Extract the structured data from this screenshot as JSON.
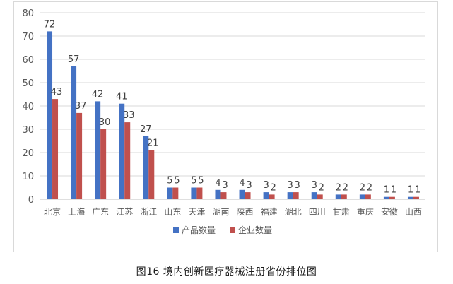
{
  "caption": "图16 境内创新医疗器械注册省份排位图",
  "colors": {
    "series1": "#4472c4",
    "series2": "#c0504d",
    "grid": "#d9d9d9",
    "axis": "#bfbfbf"
  },
  "chart_data": {
    "type": "bar",
    "title": "",
    "xlabel": "",
    "ylabel": "",
    "ylim": [
      0,
      80
    ],
    "yticks": [
      0,
      10,
      20,
      30,
      40,
      50,
      60,
      70,
      80
    ],
    "grid": true,
    "legend_position": "bottom",
    "categories": [
      "北京",
      "上海",
      "广东",
      "江苏",
      "浙江",
      "山东",
      "天津",
      "湖南",
      "陕西",
      "福建",
      "湖北",
      "四川",
      "甘肃",
      "重庆",
      "安徽",
      "山西"
    ],
    "series": [
      {
        "name": "产品数量",
        "values": [
          72,
          57,
          42,
          41,
          27,
          5,
          5,
          4,
          4,
          3,
          3,
          3,
          2,
          2,
          1,
          1
        ]
      },
      {
        "name": "企业数量",
        "values": [
          43,
          37,
          30,
          33,
          21,
          5,
          5,
          3,
          3,
          2,
          3,
          2,
          2,
          2,
          1,
          1
        ]
      }
    ]
  }
}
